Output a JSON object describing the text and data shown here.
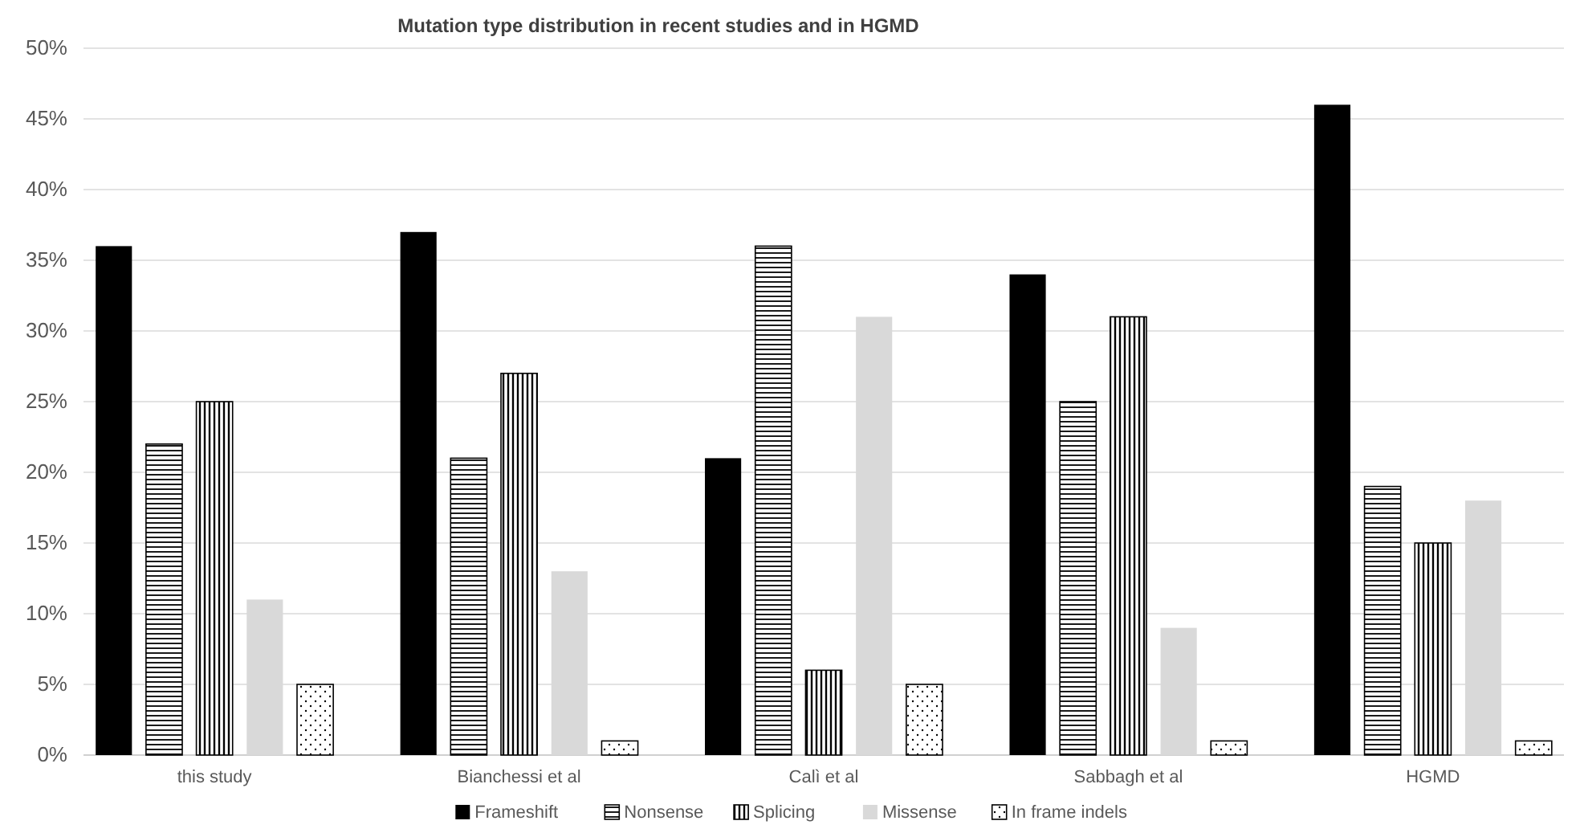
{
  "chart_data": {
    "type": "bar",
    "title": "Mutation type distribution in recent studies and in HGMD",
    "categories": [
      "this study",
      "Bianchessi et al",
      "Calì et al",
      "Sabbagh et al",
      "HGMD"
    ],
    "series": [
      {
        "name": "Frameshift",
        "color": "#000000",
        "values": [
          36,
          37,
          21,
          34,
          46
        ]
      },
      {
        "name": "Nonsense",
        "color": "#000000",
        "values": [
          22,
          21,
          36,
          25,
          19
        ]
      },
      {
        "name": "Splicing",
        "color": "#000000",
        "values": [
          25,
          27,
          6,
          31,
          15
        ]
      },
      {
        "name": "Missense",
        "color": "#d9d9d9",
        "values": [
          11,
          13,
          31,
          9,
          18
        ]
      },
      {
        "name": "In frame indels",
        "color": "#000000",
        "values": [
          5,
          1,
          5,
          1,
          1
        ]
      }
    ],
    "ylim": [
      0,
      50
    ],
    "yticks": [
      {
        "value": 0,
        "label": "0%"
      },
      {
        "value": 5,
        "label": "5%"
      },
      {
        "value": 10,
        "label": "10%"
      },
      {
        "value": 15,
        "label": "15%"
      },
      {
        "value": 20,
        "label": "20%"
      },
      {
        "value": 25,
        "label": "25%"
      },
      {
        "value": 30,
        "label": "30%"
      },
      {
        "value": 35,
        "label": "35%"
      },
      {
        "value": 40,
        "label": "40%"
      },
      {
        "value": 45,
        "label": "45%"
      },
      {
        "value": 50,
        "label": "50%"
      }
    ],
    "grid": "y",
    "legend": "bottom"
  }
}
